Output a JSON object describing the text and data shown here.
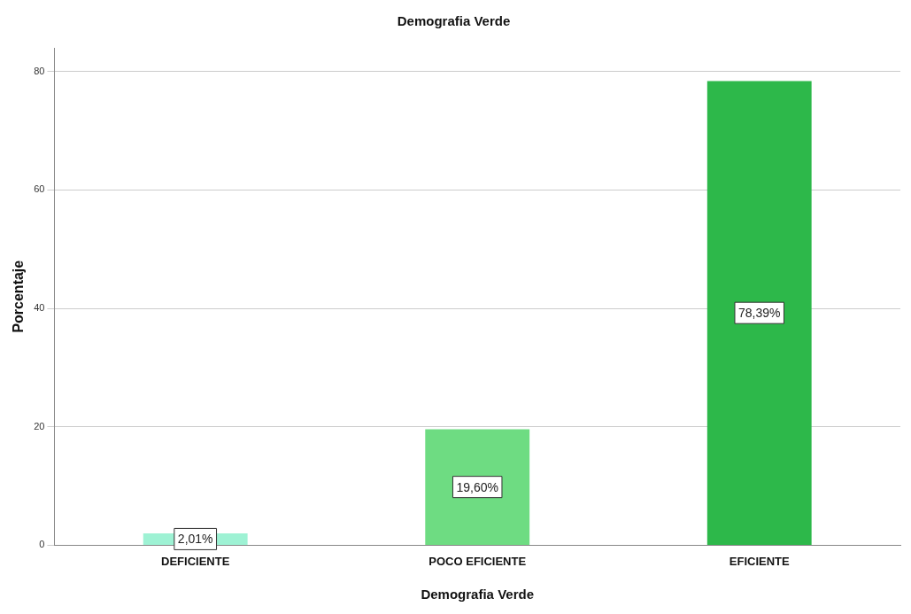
{
  "chart_data": {
    "type": "bar",
    "title": "Demografia Verde",
    "xlabel": "Demografia Verde",
    "ylabel": "Porcentaje",
    "categories": [
      "DEFICIENTE",
      "POCO EFICIENTE",
      "EFICIENTE"
    ],
    "values": [
      2.01,
      19.6,
      78.39
    ],
    "colors": [
      "#9ef2d4",
      "#6edc82",
      "#2db84a"
    ],
    "value_labels": [
      "2,01%",
      "19,60%",
      "78,39%"
    ],
    "ylim": [
      0,
      84
    ],
    "yticks": [
      0,
      20,
      40,
      60,
      80
    ],
    "grid": "y",
    "legend": false
  }
}
